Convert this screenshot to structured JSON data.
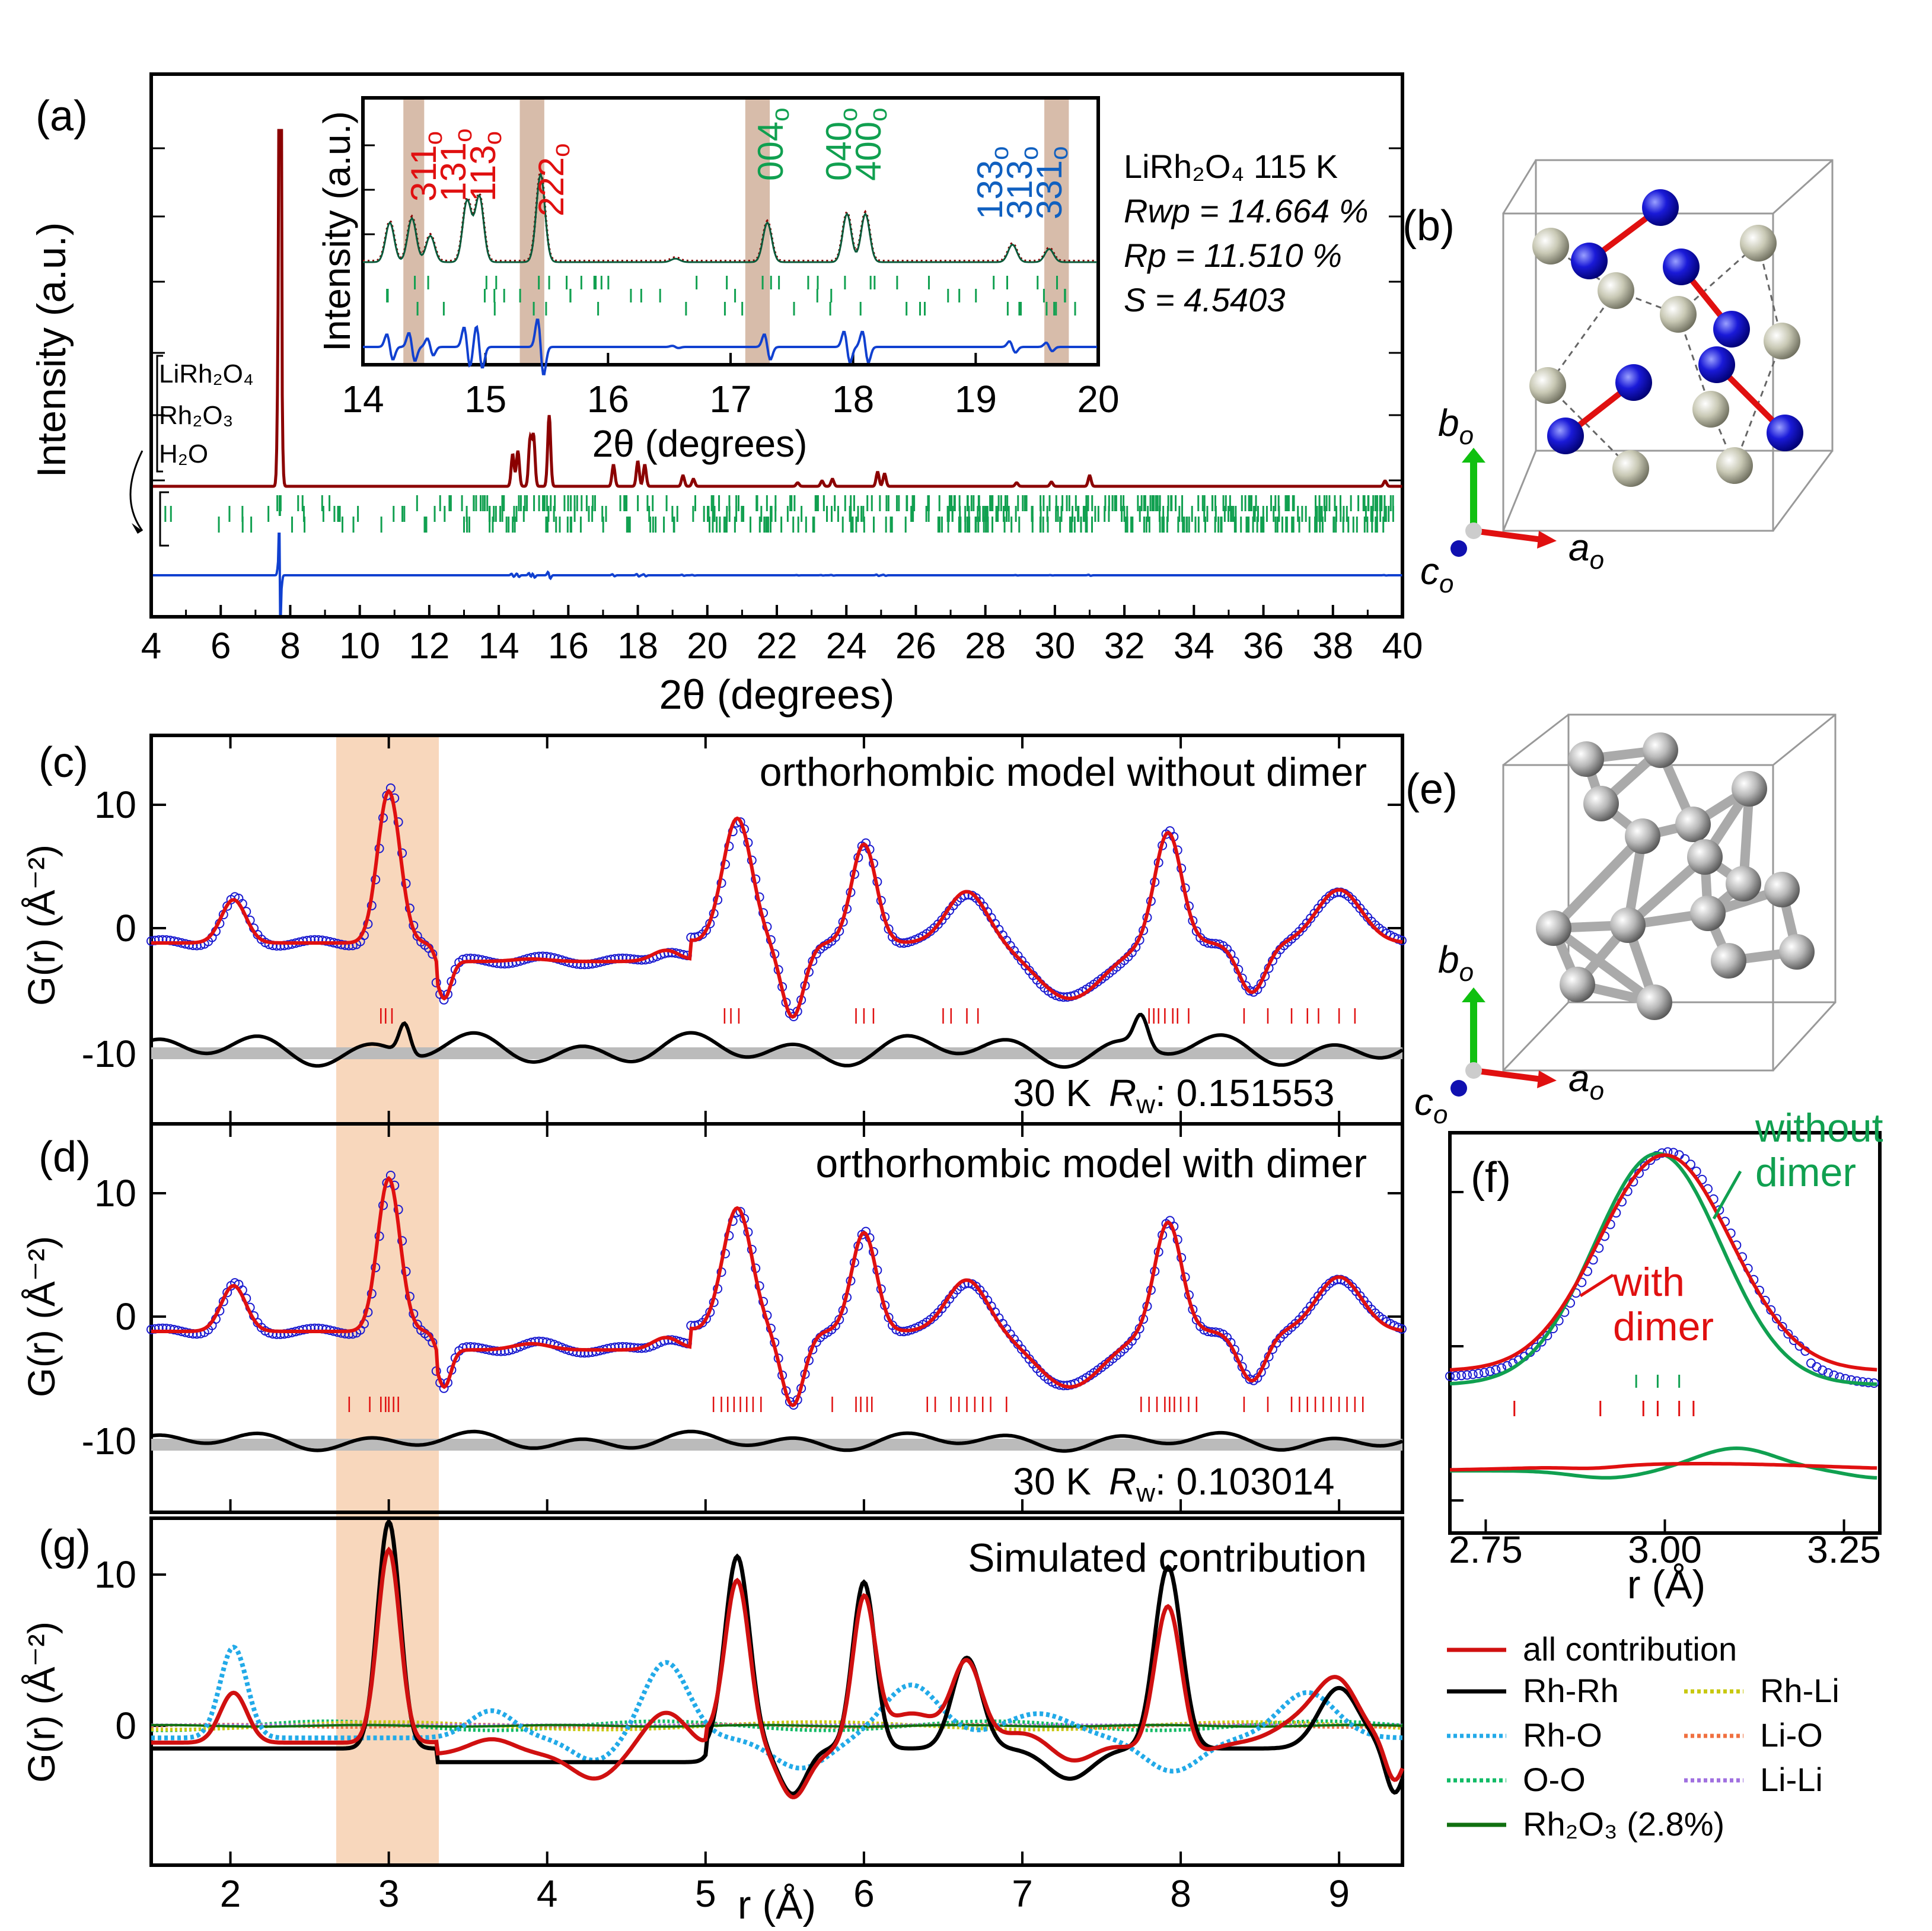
{
  "panel_labels": {
    "a": "(a)",
    "b": "(b)",
    "c": "(c)",
    "d": "(d)",
    "e": "(e)",
    "f": "(f)",
    "g": "(g)"
  },
  "colors": {
    "obs_a": "#8b0000",
    "tick_green": "#11a050",
    "diff_blue": "#1040d0",
    "pdf_obs": "#1a1ad0",
    "pdf_calc": "#e01010",
    "pdf_diff": "#000000",
    "band_brown": "#c9a58e",
    "band_orange": "#f6c9a6",
    "rh_blue": "#1a1ae0",
    "li_gray": "#c8c8b0",
    "rh_rh": "#000000",
    "rh_o": "#22aae8",
    "o_o": "#11bb66",
    "rh_li": "#c8c810",
    "li_o": "#f07040",
    "li_li": "#a070e0",
    "rh2o3": "#107010",
    "all": "#d01010",
    "f_green": "#10a050"
  },
  "structure_b": {
    "axis_b": "b",
    "axis_b_sub": "o",
    "axis_a": "a",
    "axis_a_sub": "o",
    "axis_c": "c",
    "axis_c_sub": "o"
  },
  "structure_e": {
    "axis_b": "b",
    "axis_b_sub": "o",
    "axis_a": "a",
    "axis_a_sub": "o",
    "axis_c": "c",
    "axis_c_sub": "o"
  },
  "chart_data": [
    {
      "id": "a",
      "type": "line",
      "xlabel": "2θ (degrees)",
      "ylabel": "Intensity (a.u.)",
      "xlim": [
        4,
        40
      ],
      "xticks": [
        4,
        6,
        8,
        10,
        12,
        14,
        16,
        18,
        20,
        22,
        24,
        26,
        28,
        30,
        32,
        34,
        36,
        38,
        40
      ],
      "stats": {
        "line1": "LiRh₂O₄ 115 K",
        "line2": "Rwp = 14.664 %",
        "line3": "Rp = 11.510 %",
        "line4": "S = 4.5403"
      },
      "phase_labels": [
        "LiRh₂O₄",
        "Rh₂O₃",
        "H₂O"
      ],
      "peaks": [
        [
          7.7,
          1.0
        ],
        [
          14.4,
          0.09
        ],
        [
          14.55,
          0.1
        ],
        [
          14.9,
          0.13
        ],
        [
          15.0,
          0.14
        ],
        [
          15.45,
          0.2
        ],
        [
          17.3,
          0.06
        ],
        [
          18.0,
          0.07
        ],
        [
          18.2,
          0.06
        ],
        [
          19.3,
          0.03
        ],
        [
          19.6,
          0.02
        ],
        [
          22.6,
          0.01
        ],
        [
          23.3,
          0.015
        ],
        [
          23.6,
          0.02
        ],
        [
          24.9,
          0.04
        ],
        [
          25.1,
          0.035
        ],
        [
          28.9,
          0.01
        ],
        [
          29.9,
          0.012
        ],
        [
          31.0,
          0.03
        ],
        [
          39.5,
          0.015
        ]
      ],
      "inset": {
        "xlabel": "2θ (degrees)",
        "ylabel": "Intensity (a.u.)",
        "xlim": [
          14,
          20
        ],
        "xticks": [
          14,
          15,
          16,
          17,
          18,
          19,
          20
        ],
        "bands": [
          [
            14.33,
            14.5
          ],
          [
            15.28,
            15.48
          ],
          [
            17.12,
            17.32
          ],
          [
            19.56,
            19.76
          ]
        ],
        "hkl_red": [
          "311",
          "131",
          "113",
          "222"
        ],
        "hkl_green": [
          "004",
          "040",
          "400"
        ],
        "hkl_blue": [
          "133",
          "313",
          "331"
        ],
        "hkl_sub": "o"
      }
    },
    {
      "id": "c",
      "type": "line",
      "title": "orthorhombic model without dimer",
      "xlabel": "r (Å)",
      "ylabel": "G(r) (Å⁻²)",
      "xlim": [
        1.5,
        9.4
      ],
      "ylim": [
        -16,
        16
      ],
      "yticks": [
        10,
        0,
        -10
      ],
      "note": "30 K",
      "rw_label": "R",
      "rw_sub": "w",
      "rw_value": ": 0.151553",
      "peaks_r": [
        2.02,
        3.0,
        3.9,
        4.75,
        5.2,
        6.0,
        6.65,
        7.92,
        9.0
      ],
      "peaks_g": [
        3.5,
        12.3,
        0.2,
        0.9,
        10.1,
        8.0,
        4.2,
        9.0,
        4.3
      ],
      "tick_r": [
        2.95,
        2.98,
        3.02,
        5.12,
        5.16,
        5.21,
        5.95,
        6.0,
        6.06,
        6.5,
        6.55,
        6.65,
        6.72,
        7.8,
        7.83,
        7.86,
        7.9,
        7.95,
        7.98,
        8.05,
        8.4,
        8.55,
        8.7,
        8.8,
        8.87,
        9.0,
        9.1
      ]
    },
    {
      "id": "d",
      "type": "line",
      "title": "orthorhombic model with dimer",
      "xlabel": "r (Å)",
      "ylabel": "G(r) (Å⁻²)",
      "xlim": [
        1.5,
        9.4
      ],
      "ylim": [
        -16,
        16
      ],
      "yticks": [
        10,
        0,
        -10
      ],
      "note": "30 K",
      "rw_label": "R",
      "rw_sub": "w",
      "rw_value": ": 0.103014",
      "peaks_r": [
        2.02,
        3.0,
        3.9,
        4.75,
        5.2,
        6.0,
        6.65,
        7.92,
        9.0
      ],
      "peaks_g": [
        3.7,
        12.4,
        0.5,
        1.0,
        10.0,
        8.0,
        4.2,
        8.9,
        4.4
      ],
      "tick_r": [
        2.75,
        2.88,
        2.95,
        2.98,
        3.0,
        3.03,
        3.06,
        5.05,
        5.1,
        5.14,
        5.18,
        5.22,
        5.26,
        5.3,
        5.35,
        5.8,
        5.95,
        5.98,
        6.02,
        6.05,
        6.4,
        6.45,
        6.55,
        6.6,
        6.65,
        6.7,
        6.75,
        6.8,
        6.9,
        7.75,
        7.8,
        7.85,
        7.9,
        7.93,
        7.96,
        8.0,
        8.05,
        8.1,
        8.4,
        8.55,
        8.7,
        8.75,
        8.8,
        8.85,
        8.9,
        8.95,
        9.0,
        9.05,
        9.1,
        9.15
      ]
    },
    {
      "id": "f",
      "type": "line",
      "xlabel": "r (Å)",
      "xlim": [
        2.7,
        3.3
      ],
      "xticks": [
        "2.75",
        "3.00",
        "3.25"
      ],
      "label_green": [
        "without",
        "dimer"
      ],
      "label_red": [
        "with",
        "dimer"
      ]
    },
    {
      "id": "g",
      "type": "line",
      "title": "Simulated contribution",
      "xlabel": "r (Å)",
      "ylabel": "G(r) (Å⁻²)",
      "xlim": [
        1.5,
        9.4
      ],
      "ylim": [
        -7,
        15
      ],
      "yticks": [
        10,
        0
      ],
      "xticks": [
        2,
        3,
        4,
        5,
        6,
        7,
        8,
        9
      ],
      "series": [
        {
          "name": "all contribution"
        },
        {
          "name": "Rh-Rh"
        },
        {
          "name": "Rh-O"
        },
        {
          "name": "O-O"
        },
        {
          "name": "Rh-Li"
        },
        {
          "name": "Li-O"
        },
        {
          "name": "Li-Li"
        },
        {
          "name": "Rh₂O₃ (2.8%)"
        }
      ]
    }
  ]
}
